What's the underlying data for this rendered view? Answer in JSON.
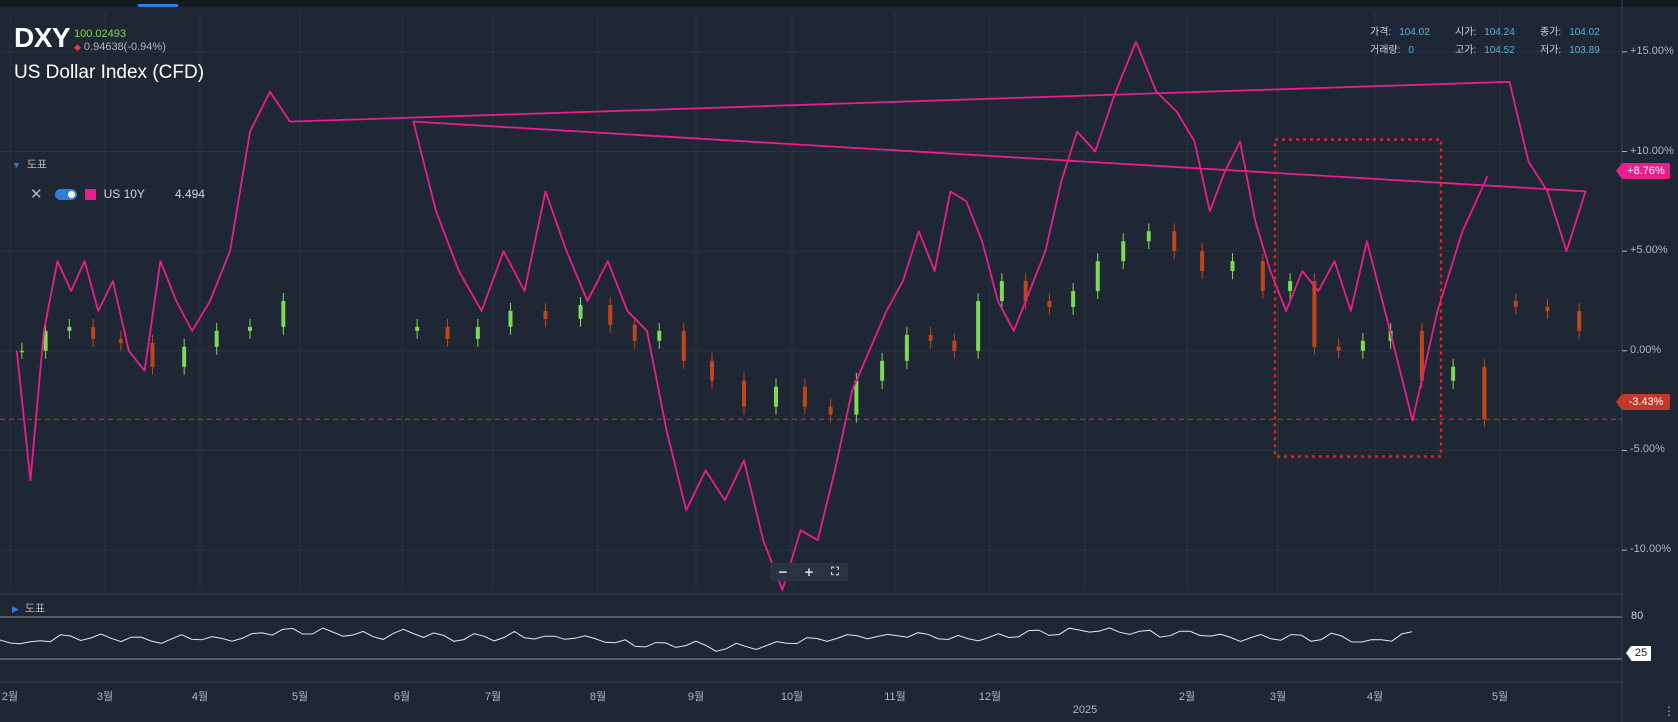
{
  "header": {
    "symbol": "DXY",
    "last_price": "100.02493",
    "change": "0.94638(-0.94%)",
    "title": "US Dollar Index (CFD)"
  },
  "ohlc_info": [
    {
      "label": "가격:",
      "value": "104.02"
    },
    {
      "label": "시가:",
      "value": "104.24"
    },
    {
      "label": "종가:",
      "value": "104.02"
    },
    {
      "label": "거래량:",
      "value": "0"
    },
    {
      "label": "고가:",
      "value": "104.52"
    },
    {
      "label": "저가:",
      "value": "103.89"
    }
  ],
  "indicators": {
    "toggle_label": "도표",
    "series_name": "US 10Y",
    "series_value": "4.494",
    "series_color": "#e91e8c"
  },
  "badges": {
    "us10y": "+8.76%",
    "dxy": "-3.43%",
    "oscillator": "25",
    "osc_level": "80"
  },
  "panel2_label": "도표",
  "zoom_controls": {
    "minus": "−",
    "plus": "+",
    "fullscreen": "⛶"
  },
  "year_label": "2025",
  "colors": {
    "up": "#7ed957",
    "down": "#c0451c",
    "us10y": "#e91e8c",
    "background": "#1e2733",
    "highlight_box": "#e82020"
  },
  "chart_data": {
    "type": "line",
    "y_axis": {
      "unit": "%",
      "range": [
        -12,
        17
      ],
      "ticks": [
        "+15.00%",
        "+10.00%",
        "+5.00%",
        "0.00%",
        "-5.00%",
        "-10.00%"
      ],
      "tick_values": [
        15,
        10,
        5,
        0,
        -5,
        -10
      ]
    },
    "x_axis": {
      "ticks": [
        "2월",
        "3월",
        "4월",
        "5월",
        "6월",
        "7월",
        "8월",
        "9월",
        "10월",
        "11월",
        "12월",
        "2025",
        "2월",
        "3월",
        "4월",
        "5월"
      ]
    },
    "grid": true,
    "reference_line": -3.43,
    "highlight_box": {
      "x_from": "3월",
      "x_to": "4월+",
      "y_from": -5.3,
      "y_to": 10.6
    },
    "series": [
      {
        "name": "US 10Y",
        "style": "line",
        "points": [
          [
            "2월",
            0.0
          ],
          [
            "2월",
            -6.5
          ],
          [
            "2월",
            1.0
          ],
          [
            "2월",
            4.5
          ],
          [
            "2월",
            3.0
          ],
          [
            "2월",
            4.5
          ],
          [
            "2월",
            2.0
          ],
          [
            "3월",
            3.5
          ],
          [
            "3월",
            0.0
          ],
          [
            "3월",
            -1.0
          ],
          [
            "3월",
            4.5
          ],
          [
            "3월",
            2.5
          ],
          [
            "3월",
            1.0
          ],
          [
            "4월",
            2.5
          ],
          [
            "4월",
            5.0
          ],
          [
            "4월",
            11.0
          ],
          [
            "4월",
            13.0
          ],
          [
            "4월",
            11.5
          ],
          [
            "5월",
            13.5
          ],
          [
            "5월",
            9.5
          ],
          [
            "5월",
            8.0
          ],
          [
            "5월",
            5.0
          ],
          [
            "5월",
            8.0
          ],
          [
            "6월",
            11.5
          ],
          [
            "6월",
            7.0
          ],
          [
            "6월",
            4.0
          ],
          [
            "6월",
            2.0
          ],
          [
            "7월",
            5.0
          ],
          [
            "7월",
            3.0
          ],
          [
            "7월",
            8.0
          ],
          [
            "7월",
            5.0
          ],
          [
            "7월",
            2.5
          ],
          [
            "8월",
            4.5
          ],
          [
            "8월",
            2.0
          ],
          [
            "8월",
            1.0
          ],
          [
            "8월",
            -4.0
          ],
          [
            "8월",
            -8.0
          ],
          [
            "9월",
            -6.0
          ],
          [
            "9월",
            -7.5
          ],
          [
            "9월",
            -5.5
          ],
          [
            "9월",
            -9.5
          ],
          [
            "9월",
            -12.0
          ],
          [
            "10월",
            -9.0
          ],
          [
            "10월",
            -9.5
          ],
          [
            "10월",
            -6.0
          ],
          [
            "10월",
            -2.0
          ],
          [
            "10월",
            0.0
          ],
          [
            "10월",
            2.0
          ],
          [
            "11월",
            3.5
          ],
          [
            "11월",
            6.0
          ],
          [
            "11월",
            4.0
          ],
          [
            "11월",
            8.0
          ],
          [
            "11월",
            7.5
          ],
          [
            "11월",
            5.5
          ],
          [
            "12월",
            2.5
          ],
          [
            "12월",
            1.0
          ],
          [
            "12월",
            3.0
          ],
          [
            "12월",
            5.0
          ],
          [
            "12월",
            8.5
          ],
          [
            "12월",
            11.0
          ],
          [
            "2025",
            10.0
          ],
          [
            "2025",
            13.0
          ],
          [
            "2025",
            15.5
          ],
          [
            "2025",
            13.0
          ],
          [
            "2025",
            12.0
          ],
          [
            "2월",
            10.5
          ],
          [
            "2월",
            7.0
          ],
          [
            "2월",
            9.0
          ],
          [
            "2월",
            10.5
          ],
          [
            "2월",
            6.5
          ],
          [
            "2월",
            4.0
          ],
          [
            "3월",
            2.0
          ],
          [
            "3월",
            4.0
          ],
          [
            "3월",
            3.0
          ],
          [
            "3월",
            4.5
          ],
          [
            "3월",
            2.0
          ],
          [
            "3월",
            5.5
          ],
          [
            "4월",
            1.5
          ],
          [
            "4월",
            -3.5
          ],
          [
            "4월",
            2.0
          ],
          [
            "4월",
            6.0
          ],
          [
            "4월",
            8.76
          ]
        ]
      },
      {
        "name": "DXY",
        "style": "candles",
        "points": [
          [
            "2월",
            0.0
          ],
          [
            "2월",
            1.0
          ],
          [
            "2월",
            1.2
          ],
          [
            "2월",
            0.6
          ],
          [
            "3월",
            0.4
          ],
          [
            "3월",
            -0.8
          ],
          [
            "3월",
            0.2
          ],
          [
            "4월",
            1.0
          ],
          [
            "4월",
            1.2
          ],
          [
            "4월",
            2.5
          ],
          [
            "5월",
            2.2
          ],
          [
            "5월",
            2.0
          ],
          [
            "5월",
            1.0
          ],
          [
            "6월",
            1.2
          ],
          [
            "6월",
            0.6
          ],
          [
            "6월",
            1.2
          ],
          [
            "7월",
            2.0
          ],
          [
            "7월",
            1.6
          ],
          [
            "7월",
            2.3
          ],
          [
            "8월",
            1.3
          ],
          [
            "8월",
            0.5
          ],
          [
            "8월",
            1.0
          ],
          [
            "8월",
            -0.5
          ],
          [
            "9월",
            -1.5
          ],
          [
            "9월",
            -2.8
          ],
          [
            "9월",
            -1.8
          ],
          [
            "10월",
            -2.8
          ],
          [
            "10월",
            -3.2
          ],
          [
            "10월",
            -1.5
          ],
          [
            "10월",
            -0.5
          ],
          [
            "11월",
            0.8
          ],
          [
            "11월",
            0.5
          ],
          [
            "11월",
            0.0
          ],
          [
            "11월",
            2.5
          ],
          [
            "12월",
            3.5
          ],
          [
            "12월",
            2.5
          ],
          [
            "12월",
            2.2
          ],
          [
            "12월",
            3.0
          ],
          [
            "2025",
            4.5
          ],
          [
            "2025",
            5.5
          ],
          [
            "2025",
            6.0
          ],
          [
            "2025",
            5.0
          ],
          [
            "2월",
            4.0
          ],
          [
            "2월",
            4.5
          ],
          [
            "2월",
            3.0
          ],
          [
            "3월",
            3.5
          ],
          [
            "3월",
            0.2
          ],
          [
            "3월",
            0.0
          ],
          [
            "3월",
            0.5
          ],
          [
            "4월",
            1.0
          ],
          [
            "4월",
            -1.5
          ],
          [
            "4월",
            -0.8
          ],
          [
            "4월",
            -3.43
          ]
        ]
      }
    ]
  }
}
